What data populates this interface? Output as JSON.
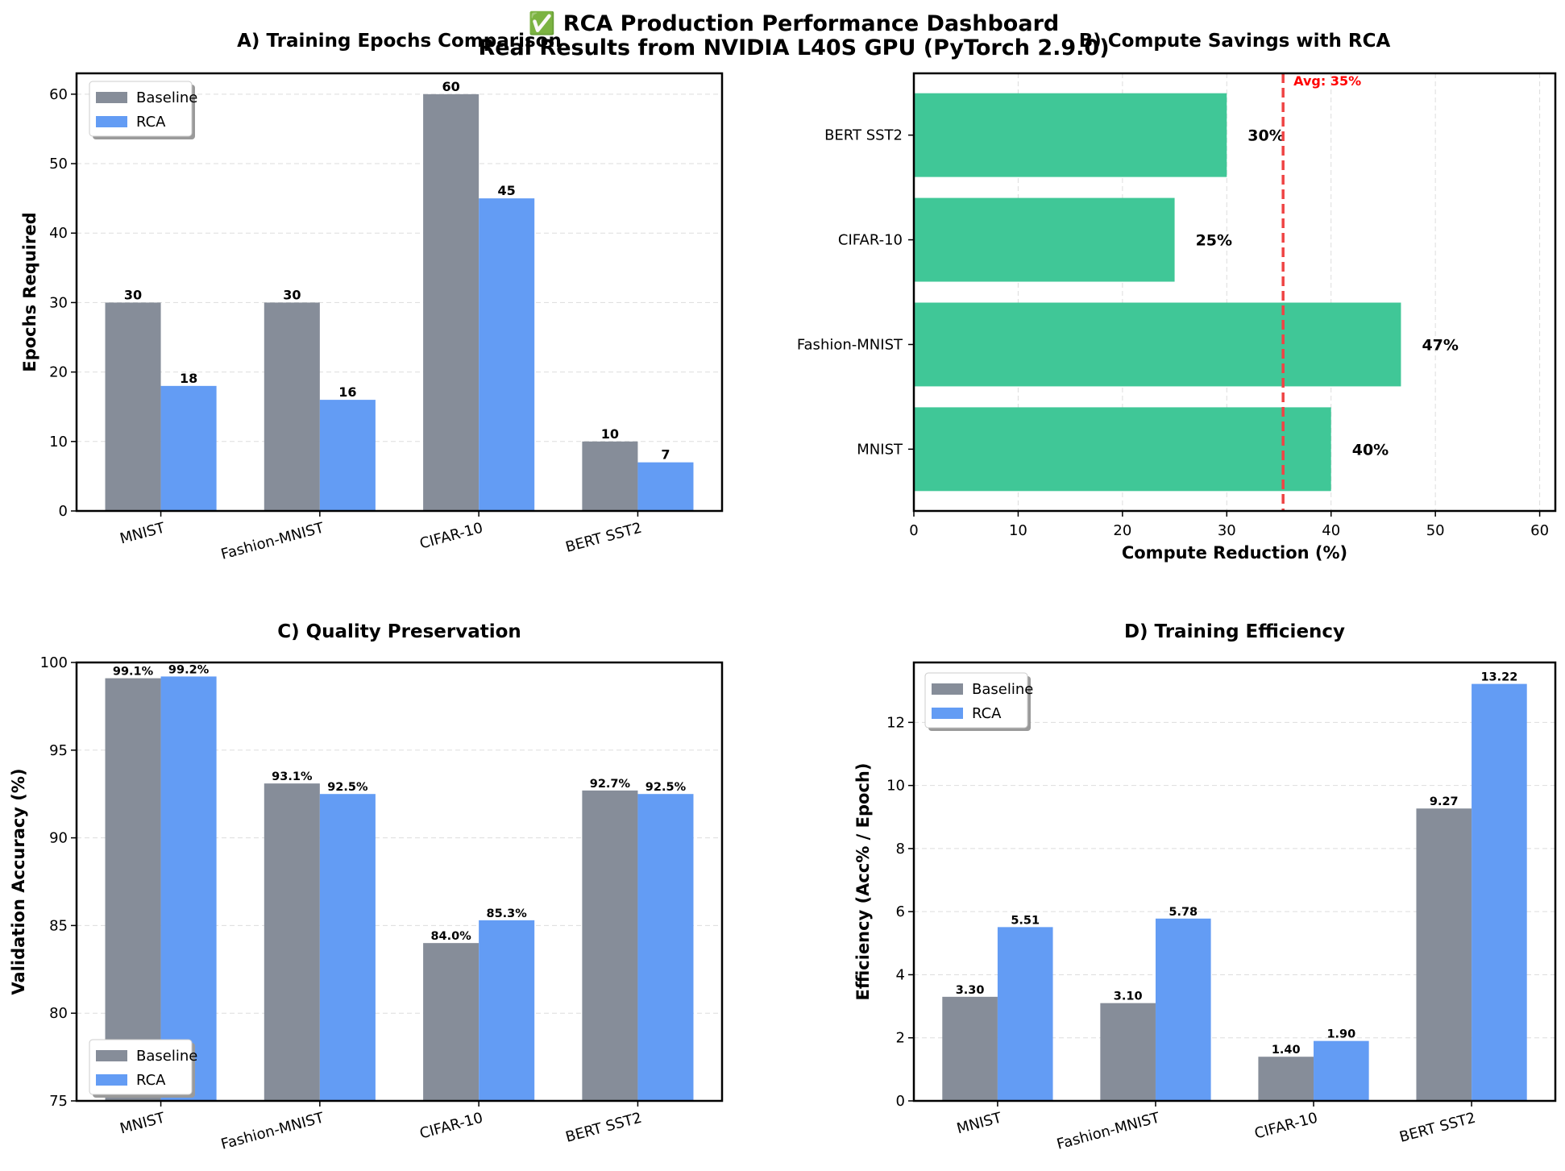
{
  "suptitle": {
    "line1": "✅ RCA Production Performance Dashboard",
    "line2": "Real Results from NVIDIA L40S GPU (PyTorch 2.9.0)"
  },
  "colors": {
    "baseline": "#868d99",
    "rca": "#639cf4",
    "savings": "#40c797",
    "avg_line": "#ef4444"
  },
  "chart_data": [
    {
      "id": "A",
      "type": "bar",
      "title": "A) Training Epochs Comparison",
      "xlabel": "",
      "ylabel": "Epochs Required",
      "categories": [
        "MNIST",
        "Fashion-MNIST",
        "CIFAR-10",
        "BERT SST2"
      ],
      "series": [
        {
          "name": "Baseline",
          "values": [
            30,
            30,
            60,
            10
          ],
          "labels": [
            "30",
            "30",
            "60",
            "10"
          ]
        },
        {
          "name": "RCA",
          "values": [
            18,
            16,
            45,
            7
          ],
          "labels": [
            "18",
            "16",
            "45",
            "7"
          ]
        }
      ],
      "ylim": [
        0,
        63
      ],
      "yticks": [
        0,
        10,
        20,
        30,
        40,
        50,
        60
      ],
      "grid": "y",
      "legend": "top-left"
    },
    {
      "id": "B",
      "type": "bar",
      "orientation": "horizontal",
      "title": "B) Compute Savings with RCA",
      "xlabel": "Compute Reduction (%)",
      "ylabel": "",
      "categories": [
        "MNIST",
        "Fashion-MNIST",
        "CIFAR-10",
        "BERT SST2"
      ],
      "values": [
        40,
        46.7,
        25,
        30
      ],
      "labels": [
        "40%",
        "47%",
        "25%",
        "30%"
      ],
      "xlim": [
        0,
        61.5
      ],
      "xticks": [
        0,
        10,
        20,
        30,
        40,
        50,
        60
      ],
      "reference_line": {
        "value": 35.4,
        "label": "Avg: 35%"
      },
      "grid": "x"
    },
    {
      "id": "C",
      "type": "bar",
      "title": "C) Quality Preservation",
      "xlabel": "",
      "ylabel": "Validation Accuracy (%)",
      "categories": [
        "MNIST",
        "Fashion-MNIST",
        "CIFAR-10",
        "BERT SST2"
      ],
      "series": [
        {
          "name": "Baseline",
          "values": [
            99.1,
            93.1,
            84.0,
            92.7
          ],
          "labels": [
            "99.1%",
            "93.1%",
            "84.0%",
            "92.7%"
          ]
        },
        {
          "name": "RCA",
          "values": [
            99.2,
            92.5,
            85.3,
            92.5
          ],
          "labels": [
            "99.2%",
            "92.5%",
            "85.3%",
            "92.5%"
          ]
        }
      ],
      "ylim": [
        75,
        100
      ],
      "yticks": [
        75,
        80,
        85,
        90,
        95,
        100
      ],
      "grid": "y",
      "legend": "bottom-left"
    },
    {
      "id": "D",
      "type": "bar",
      "title": "D) Training Efficiency",
      "xlabel": "",
      "ylabel": "Efficiency (Acc% / Epoch)",
      "categories": [
        "MNIST",
        "Fashion-MNIST",
        "CIFAR-10",
        "BERT SST2"
      ],
      "series": [
        {
          "name": "Baseline",
          "values": [
            3.3,
            3.1,
            1.4,
            9.27
          ],
          "labels": [
            "3.30",
            "3.10",
            "1.40",
            "9.27"
          ]
        },
        {
          "name": "RCA",
          "values": [
            5.51,
            5.78,
            1.9,
            13.22
          ],
          "labels": [
            "5.51",
            "5.78",
            "1.90",
            "13.22"
          ]
        }
      ],
      "ylim": [
        0,
        13.9
      ],
      "yticks": [
        0,
        2,
        4,
        6,
        8,
        10,
        12
      ],
      "grid": "y",
      "legend": "top-left"
    }
  ]
}
